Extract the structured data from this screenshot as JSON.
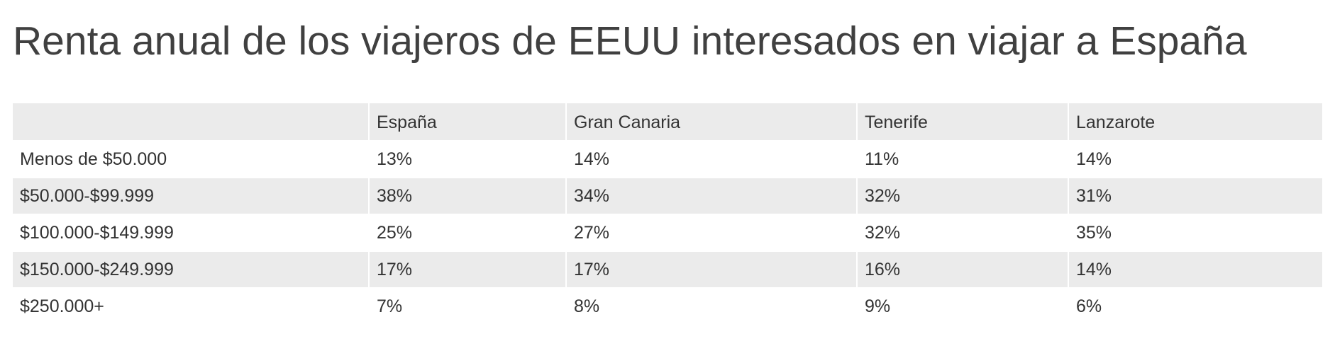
{
  "page": {
    "title": "Renta anual de los viajeros de EEUU interesados en viajar a España"
  },
  "table": {
    "headers": [
      "",
      "España",
      "Gran Canaria",
      "Tenerife",
      "Lanzarote"
    ],
    "rows": [
      [
        "Menos de $50.000",
        "13%",
        "14%",
        "11%",
        "14%"
      ],
      [
        "$50.000-$99.999",
        "38%",
        "34%",
        "32%",
        "31%"
      ],
      [
        "$100.000-$149.999",
        "25%",
        "27%",
        "32%",
        "35%"
      ],
      [
        "$150.000-$249.999",
        "17%",
        "17%",
        "16%",
        "14%"
      ],
      [
        "$250.000+",
        "7%",
        "8%",
        "9%",
        "6%"
      ]
    ]
  },
  "colors": {
    "stripe": "#ebebeb",
    "text": "#333333",
    "title": "#404040"
  }
}
